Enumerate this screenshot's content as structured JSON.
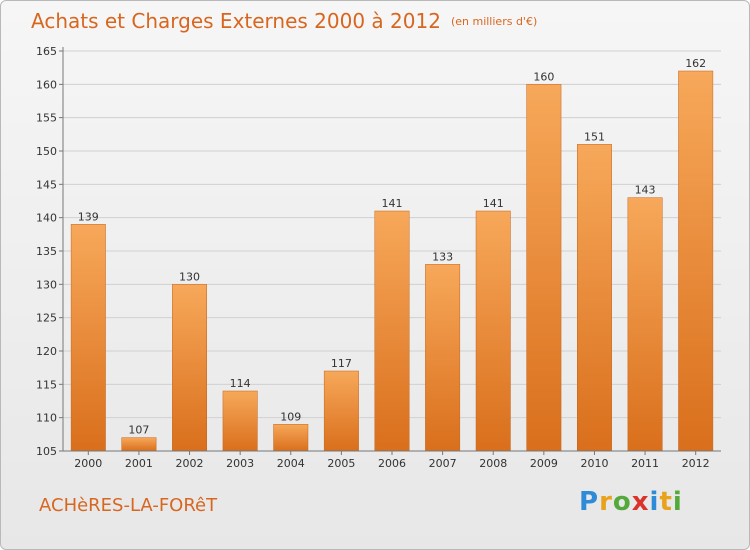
{
  "header": {
    "title": "Achats et Charges Externes 2000 à 2012",
    "unit": "(en milliers d'€)"
  },
  "footer": {
    "commune": "ACHèRES-LA-FORêT",
    "logo": {
      "text": "Proxiti",
      "letters": [
        {
          "ch": "P",
          "color": "#2e8bd8"
        },
        {
          "ch": "r",
          "color": "#e8a21c"
        },
        {
          "ch": "o",
          "color": "#53a93a"
        },
        {
          "ch": "x",
          "color": "#d9332b"
        },
        {
          "ch": "i",
          "color": "#2e8bd8"
        },
        {
          "ch": "t",
          "color": "#e8a21c"
        },
        {
          "ch": "i",
          "color": "#53a93a"
        }
      ]
    }
  },
  "colors": {
    "bar_top": "#f7a85a",
    "bar_bottom": "#d96f1c",
    "grid": "#d0d0d0",
    "accent": "#d9661f"
  },
  "chart_data": {
    "type": "bar",
    "categories": [
      "2000",
      "2001",
      "2002",
      "2003",
      "2004",
      "2005",
      "2006",
      "2007",
      "2008",
      "2009",
      "2010",
      "2011",
      "2012"
    ],
    "values": [
      139,
      107,
      130,
      114,
      109,
      117,
      141,
      133,
      141,
      160,
      151,
      143,
      162
    ],
    "yticks": [
      105,
      110,
      115,
      120,
      125,
      130,
      135,
      140,
      145,
      150,
      155,
      160,
      165
    ],
    "ylim": [
      105,
      165
    ],
    "grid": true,
    "legend": "none"
  }
}
